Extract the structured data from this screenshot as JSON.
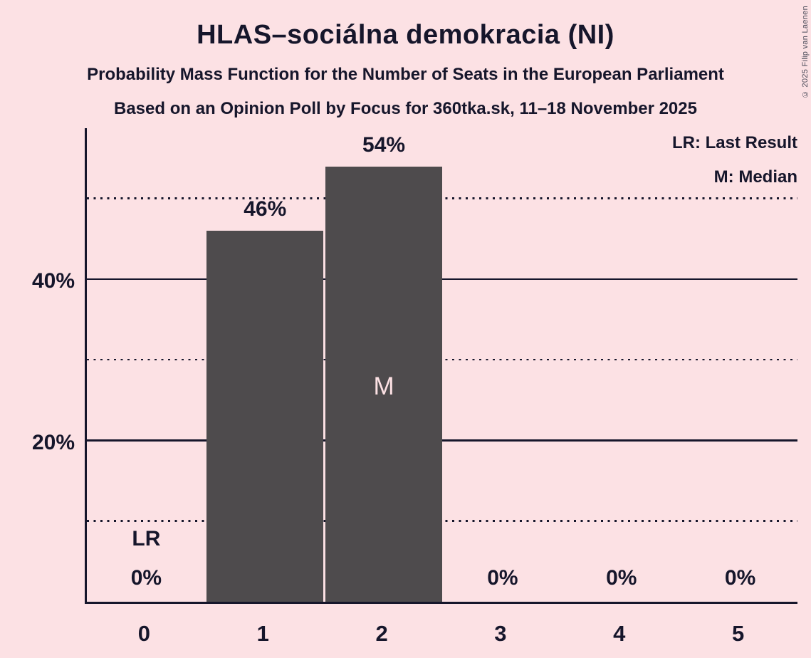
{
  "title": "HLAS–sociálna demokracia (NI)",
  "subtitle1": "Probability Mass Function for the Number of Seats in the European Parliament",
  "subtitle2": "Based on an Opinion Poll by Focus for 360tka.sk, 11–18 November 2025",
  "copyright": "© 2025 Filip van Laenen",
  "legend": {
    "lr": "LR: Last Result",
    "m": "M: Median"
  },
  "colors": {
    "background": "#FCE1E4",
    "bar": "#4E4B4D",
    "text": "#16162B"
  },
  "chart_data": {
    "type": "bar",
    "title": "HLAS–sociálna demokracia (NI)",
    "xlabel": "Number of Seats in the European Parliament",
    "ylabel": "Probability",
    "categories": [
      "0",
      "1",
      "2",
      "3",
      "4",
      "5"
    ],
    "values": [
      0,
      46,
      54,
      0,
      0,
      0
    ],
    "bar_labels": [
      "0%",
      "46%",
      "54%",
      "0%",
      "0%",
      "0%"
    ],
    "ylim": [
      0,
      59
    ],
    "yticks": [
      {
        "pct": 20,
        "label": "20%"
      },
      {
        "pct": 40,
        "label": "40%"
      }
    ],
    "gridlines": [
      {
        "pct": 10,
        "style": "dotted"
      },
      {
        "pct": 20,
        "style": "solid"
      },
      {
        "pct": 30,
        "style": "dotted"
      },
      {
        "pct": 40,
        "style": "solid"
      },
      {
        "pct": 50,
        "style": "dotted"
      }
    ],
    "legend_position": "top-right",
    "annotations": {
      "last_result_seats": 0,
      "last_result_label": "LR",
      "median_seats": 2,
      "median_label": "M"
    }
  }
}
